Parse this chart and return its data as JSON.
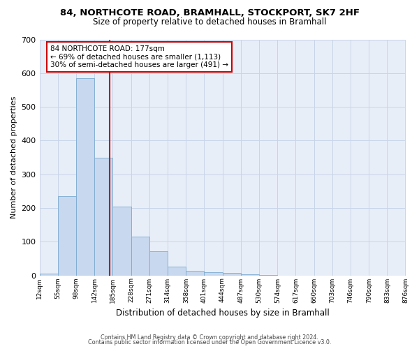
{
  "title1": "84, NORTHCOTE ROAD, BRAMHALL, STOCKPORT, SK7 2HF",
  "title2": "Size of property relative to detached houses in Bramhall",
  "xlabel": "Distribution of detached houses by size in Bramhall",
  "ylabel": "Number of detached properties",
  "footer1": "Contains HM Land Registry data © Crown copyright and database right 2024.",
  "footer2": "Contains public sector information licensed under the Open Government Licence v3.0.",
  "annotation_line1": "84 NORTHCOTE ROAD: 177sqm",
  "annotation_line2": "← 69% of detached houses are smaller (1,113)",
  "annotation_line3": "30% of semi-detached houses are larger (491) →",
  "bar_edges": [
    12,
    55,
    98,
    142,
    185,
    228,
    271,
    314,
    358,
    401,
    444,
    487,
    530,
    574,
    617,
    660,
    703,
    746,
    790,
    833,
    876
  ],
  "bar_heights": [
    5,
    235,
    585,
    348,
    203,
    115,
    72,
    25,
    13,
    10,
    7,
    4,
    2,
    0,
    0,
    0,
    0,
    0,
    0,
    0
  ],
  "bar_color": "#c8d8ee",
  "bar_edge_color": "#7aaad0",
  "vline_x": 177,
  "vline_color": "#cc0000",
  "annotation_box_color": "#cc0000",
  "ylim": [
    0,
    700
  ],
  "yticks": [
    0,
    100,
    200,
    300,
    400,
    500,
    600,
    700
  ],
  "grid_color": "#c8d4e8",
  "bg_color": "#e8eef8"
}
